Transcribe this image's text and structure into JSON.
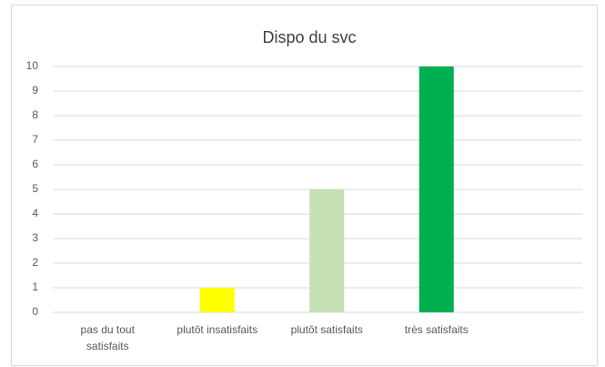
{
  "chart_data": {
    "type": "bar",
    "title": "Dispo du svc",
    "categories": [
      "pas du tout satisfaits",
      "plutôt insatisfaits",
      "plutôt satisfaits",
      "très satisfaits",
      null
    ],
    "values": [
      0,
      1,
      5,
      10,
      null
    ],
    "colors": [
      "#4472c4",
      "#ffff00",
      "#c5e0b4",
      "#00b050",
      "#4472c4"
    ],
    "ylim": [
      0,
      10
    ],
    "yticks": [
      0,
      1,
      2,
      3,
      4,
      5,
      6,
      7,
      8,
      9,
      10
    ],
    "grid": true
  }
}
